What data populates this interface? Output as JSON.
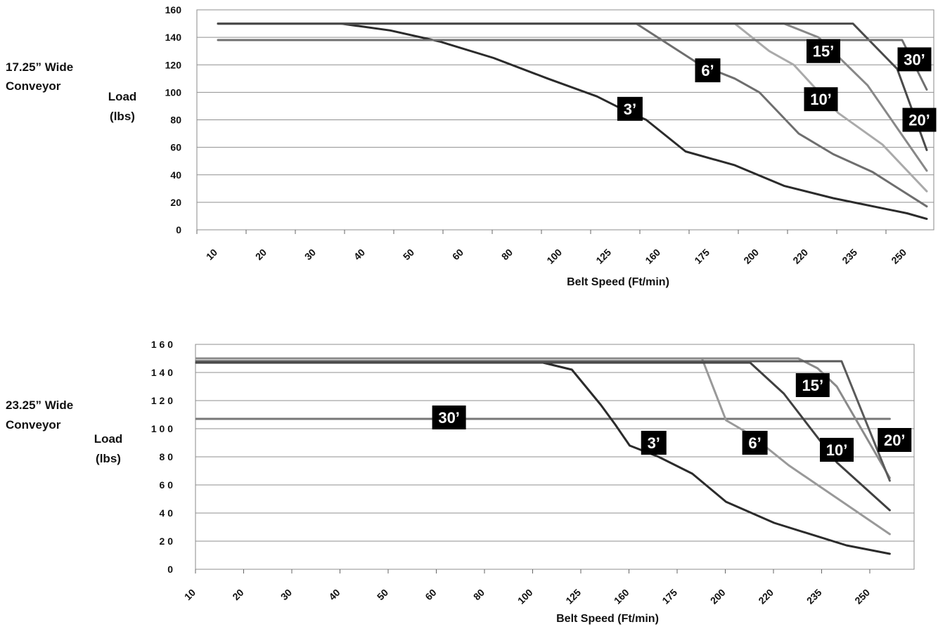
{
  "chart_data": [
    {
      "type": "line",
      "conveyor_label": [
        "17.25” Wide",
        "Conveyor"
      ],
      "ylabel": [
        "Load",
        "(lbs)"
      ],
      "xlabel": "Belt Speed (Ft/min)",
      "categories": [
        "10",
        "20",
        "30",
        "40",
        "50",
        "60",
        "80",
        "100",
        "125",
        "160",
        "175",
        "200",
        "220",
        "235",
        "250"
      ],
      "y_ticks": [
        "0",
        "20",
        "40",
        "60",
        "80",
        "100",
        "120",
        "140",
        "160"
      ],
      "ylim": [
        0,
        160
      ],
      "grid": true,
      "series": [
        {
          "name": "3’",
          "color": "#2b2b2b",
          "points": [
            [
              0,
              150
            ],
            [
              2.5,
              150
            ],
            [
              3.5,
              145
            ],
            [
              4.5,
              137
            ],
            [
              5.6,
              125
            ],
            [
              6.7,
              110
            ],
            [
              7.7,
              97
            ],
            [
              8.2,
              88
            ],
            [
              8.7,
              80
            ],
            [
              9.5,
              57
            ],
            [
              10.5,
              47
            ],
            [
              11.5,
              32
            ],
            [
              12.5,
              23
            ],
            [
              14.0,
              12
            ],
            [
              14.4,
              8
            ]
          ]
        },
        {
          "name": "6’",
          "color": "#6e6e6e",
          "points": [
            [
              0,
              150
            ],
            [
              8.5,
              150
            ],
            [
              9.8,
              120
            ],
            [
              10.5,
              110
            ],
            [
              11.0,
              100
            ],
            [
              11.8,
              70
            ],
            [
              12.5,
              55
            ],
            [
              13.3,
              42
            ],
            [
              14.4,
              17
            ]
          ]
        },
        {
          "name": "10’",
          "color": "#aaaaaa",
          "points": [
            [
              0,
              150
            ],
            [
              10.5,
              150
            ],
            [
              11.2,
              130
            ],
            [
              11.7,
              120
            ],
            [
              12.6,
              85
            ],
            [
              13.5,
              62
            ],
            [
              14.4,
              28
            ]
          ]
        },
        {
          "name": "15’",
          "color": "#888888",
          "points": [
            [
              0,
              150
            ],
            [
              11.5,
              150
            ],
            [
              12.2,
              140
            ],
            [
              13.2,
              105
            ],
            [
              14.4,
              43
            ]
          ]
        },
        {
          "name": "20’",
          "color": "#4a4a4a",
          "points": [
            [
              0,
              150
            ],
            [
              12.9,
              150
            ],
            [
              13.8,
              117
            ],
            [
              14.4,
              58
            ]
          ]
        },
        {
          "name": "30’",
          "color": "#707070",
          "points": [
            [
              0,
              138
            ],
            [
              13.9,
              138
            ],
            [
              14.4,
              102
            ]
          ]
        }
      ],
      "annotations": [
        {
          "text": "3’",
          "cat": 8.37,
          "y": 88
        },
        {
          "text": "6’",
          "cat": 9.95,
          "y": 116
        },
        {
          "text": "10’",
          "cat": 12.25,
          "y": 95
        },
        {
          "text": "15’",
          "cat": 12.3,
          "y": 130
        },
        {
          "text": "20’",
          "cat": 14.25,
          "y": 80
        },
        {
          "text": "30’",
          "cat": 14.15,
          "y": 124
        }
      ]
    },
    {
      "type": "line",
      "conveyor_label": [
        "23.25” Wide",
        "Conveyor"
      ],
      "ylabel": [
        "Load",
        "(lbs)"
      ],
      "xlabel": "Belt Speed (Ft/min)",
      "categories": [
        "10",
        "20",
        "30",
        "40",
        "50",
        "60",
        "80",
        "100",
        "125",
        "160",
        "175",
        "200",
        "220",
        "235",
        "250"
      ],
      "y_ticks": [
        "0",
        "2 0",
        "4 0",
        "6 0",
        "8 0",
        "1 0 0",
        "1 2 0",
        "1 4 0",
        "1 6 0"
      ],
      "ylim": [
        0,
        160
      ],
      "grid": true,
      "series": [
        {
          "name": "30’",
          "color": "#777777",
          "points": [
            [
              0,
              107
            ],
            [
              14.4,
              107
            ]
          ]
        },
        {
          "name": "3’",
          "color": "#2b2b2b",
          "points": [
            [
              0,
              147
            ],
            [
              6.8,
              148
            ],
            [
              7.2,
              147
            ],
            [
              7.8,
              142
            ],
            [
              8.4,
              117
            ],
            [
              8.7,
              103
            ],
            [
              9.0,
              88
            ],
            [
              9.6,
              80
            ],
            [
              10.3,
              68
            ],
            [
              11.0,
              48
            ],
            [
              12.0,
              33
            ],
            [
              13.5,
              17
            ],
            [
              14.4,
              11
            ]
          ]
        },
        {
          "name": "6’",
          "color": "#999999",
          "points": [
            [
              0,
              150
            ],
            [
              10.5,
              150
            ],
            [
              11.0,
              106
            ],
            [
              11.5,
              96
            ],
            [
              12.3,
              74
            ],
            [
              13.5,
              46
            ],
            [
              14.4,
              25
            ]
          ]
        },
        {
          "name": "10’",
          "color": "#404040",
          "points": [
            [
              0,
              147
            ],
            [
              11.5,
              147
            ],
            [
              12.2,
              125
            ],
            [
              13.3,
              76
            ],
            [
              14.4,
              42
            ]
          ]
        },
        {
          "name": "15’",
          "color": "#8a8a8a",
          "points": [
            [
              0,
              150
            ],
            [
              12.5,
              150
            ],
            [
              12.9,
              143
            ],
            [
              13.3,
              130
            ],
            [
              14.4,
              65
            ]
          ]
        },
        {
          "name": "20’",
          "color": "#5a5a5a",
          "points": [
            [
              0,
              148
            ],
            [
              13.4,
              148
            ],
            [
              14.4,
              63
            ]
          ]
        }
      ],
      "annotations": [
        {
          "text": "30’",
          "cat": 5.25,
          "y": 108
        },
        {
          "text": "3’",
          "cat": 9.5,
          "y": 90
        },
        {
          "text": "6’",
          "cat": 11.6,
          "y": 90
        },
        {
          "text": "10’",
          "cat": 13.3,
          "y": 85
        },
        {
          "text": "15’",
          "cat": 12.8,
          "y": 131
        },
        {
          "text": "20’",
          "cat": 14.5,
          "y": 92
        }
      ]
    }
  ]
}
